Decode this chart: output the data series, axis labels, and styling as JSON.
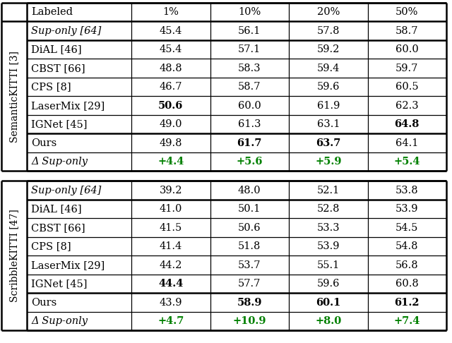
{
  "table1_label": "SemanticKITTI [3]",
  "table2_label": "ScribbleKITTI [47]",
  "header": [
    "Labeled",
    "1%",
    "10%",
    "20%",
    "50%"
  ],
  "table1_rows": [
    {
      "name": "Sup-only [64]",
      "italic_name": true,
      "bold_cols": [],
      "vals": [
        "45.4",
        "56.1",
        "57.8",
        "58.7"
      ],
      "suponly": true
    },
    {
      "name": "DiAL [46]",
      "italic_name": false,
      "bold_cols": [],
      "vals": [
        "45.4",
        "57.1",
        "59.2",
        "60.0"
      ]
    },
    {
      "name": "CBST [66]",
      "italic_name": false,
      "bold_cols": [],
      "vals": [
        "48.8",
        "58.3",
        "59.4",
        "59.7"
      ]
    },
    {
      "name": "CPS [8]",
      "italic_name": false,
      "bold_cols": [],
      "vals": [
        "46.7",
        "58.7",
        "59.6",
        "60.5"
      ]
    },
    {
      "name": "LaserMix [29]",
      "italic_name": false,
      "bold_cols": [
        0
      ],
      "vals": [
        "50.6",
        "60.0",
        "61.9",
        "62.3"
      ]
    },
    {
      "name": "IGNet [45]",
      "italic_name": false,
      "bold_cols": [
        3
      ],
      "vals": [
        "49.0",
        "61.3",
        "63.1",
        "64.8"
      ]
    }
  ],
  "table1_ours": {
    "name": "Ours",
    "bold_cols": [
      1,
      2
    ],
    "vals": [
      "49.8",
      "61.7",
      "63.7",
      "64.1"
    ]
  },
  "table1_delta": {
    "name": "Δ Sup-only",
    "vals": [
      "+4.4",
      "+5.6",
      "+5.9",
      "+5.4"
    ],
    "bold_cols": [
      0,
      1,
      2,
      3
    ]
  },
  "table2_rows": [
    {
      "name": "Sup-only [64]",
      "italic_name": true,
      "bold_cols": [],
      "vals": [
        "39.2",
        "48.0",
        "52.1",
        "53.8"
      ],
      "suponly": true
    },
    {
      "name": "DiAL [46]",
      "italic_name": false,
      "bold_cols": [],
      "vals": [
        "41.0",
        "50.1",
        "52.8",
        "53.9"
      ]
    },
    {
      "name": "CBST [66]",
      "italic_name": false,
      "bold_cols": [],
      "vals": [
        "41.5",
        "50.6",
        "53.3",
        "54.5"
      ]
    },
    {
      "name": "CPS [8]",
      "italic_name": false,
      "bold_cols": [],
      "vals": [
        "41.4",
        "51.8",
        "53.9",
        "54.8"
      ]
    },
    {
      "name": "LaserMix [29]",
      "italic_name": false,
      "bold_cols": [],
      "vals": [
        "44.2",
        "53.7",
        "55.1",
        "56.8"
      ]
    },
    {
      "name": "IGNet [45]",
      "italic_name": false,
      "bold_cols": [
        0
      ],
      "vals": [
        "44.4",
        "57.7",
        "59.6",
        "60.8"
      ]
    }
  ],
  "table2_ours": {
    "name": "Ours",
    "bold_cols": [
      1,
      2,
      3
    ],
    "vals": [
      "43.9",
      "58.9",
      "60.1",
      "61.2"
    ]
  },
  "table2_delta": {
    "name": "Δ Sup-only",
    "vals": [
      "+4.7",
      "+10.9",
      "+8.0",
      "+7.4"
    ],
    "bold_cols": [
      0,
      1,
      2,
      3
    ]
  },
  "green_color": "#008000",
  "bg_color": "#ffffff",
  "text_color": "#000000",
  "line_color": "#000000",
  "fig_width": 6.4,
  "fig_height": 4.86,
  "dpi": 100
}
